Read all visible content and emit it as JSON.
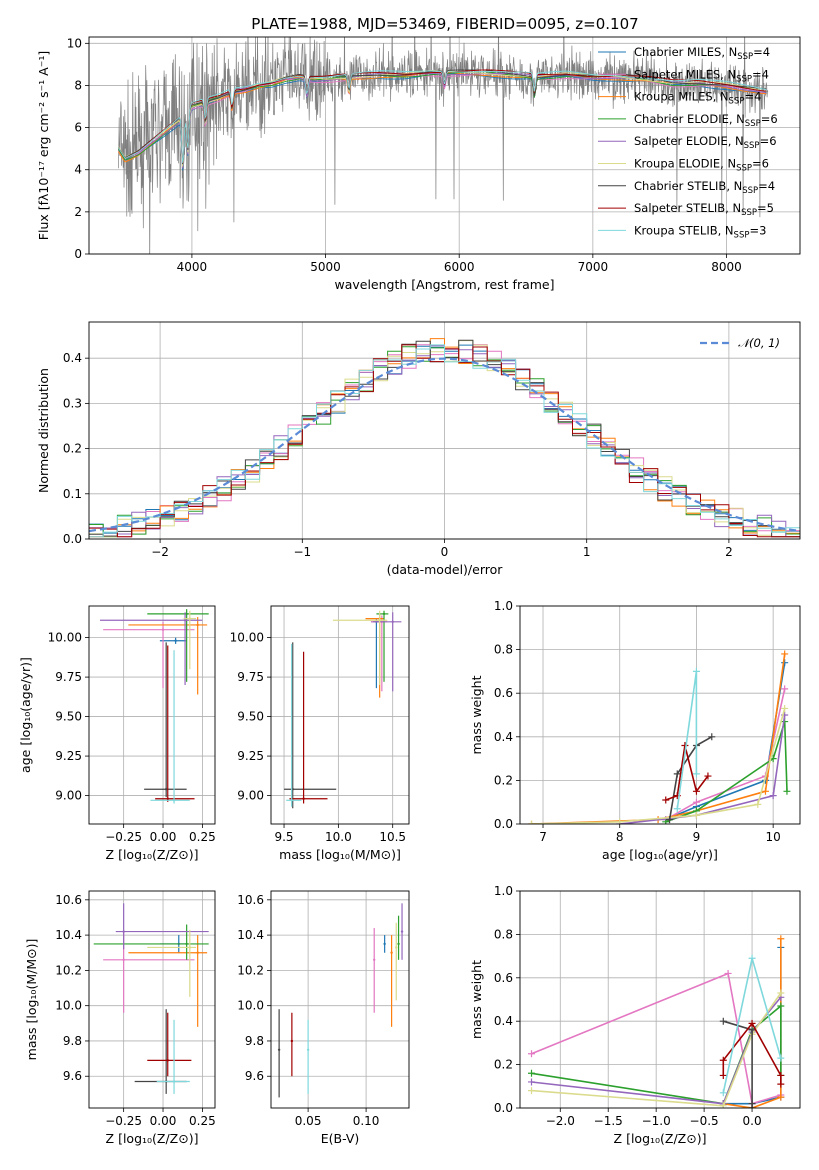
{
  "figure": {
    "title": "PLATE=1988, MJD=53469, FIBERID=0095, z=0.107"
  },
  "colors": {
    "Chabrier MILES": "#1f77b4",
    "Salpeter MILES": "#e377c2",
    "Kroupa MILES": "#ff7f0e",
    "Chabrier ELODIE": "#2ca02c",
    "Salpeter ELODIE": "#9467bd",
    "Kroupa ELODIE": "#dbdb8d",
    "Chabrier STELIB": "#444444",
    "Salpeter STELIB": "#a00000",
    "Kroupa STELIB": "#7fd8dc",
    "gaussian": "#5b8bd6"
  },
  "chart_data": [
    {
      "id": "spectrum",
      "type": "line",
      "title": "PLATE=1988, MJD=53469, FIBERID=0095, z=0.107",
      "xlabel": "wavelength [Angstrom, rest frame]",
      "ylabel": "Flux [fλ10⁻¹⁷ erg cm⁻² s⁻¹ A⁻¹]",
      "xlim": [
        3230,
        8550
      ],
      "ylim": [
        0,
        10.3
      ],
      "xticks": [
        4000,
        5000,
        6000,
        7000,
        8000
      ],
      "yticks": [
        0,
        2,
        4,
        6,
        8,
        10
      ],
      "legend_position": "upper-right",
      "continuum": {
        "x": [
          3450,
          3500,
          3600,
          3700,
          3800,
          3900,
          4000,
          4100,
          4200,
          4300,
          4400,
          4500,
          4600,
          4700,
          4800,
          4900,
          5000,
          5200,
          5400,
          5600,
          5800,
          6000,
          6200,
          6400,
          6600,
          6800,
          7000,
          7200,
          7400,
          7600,
          7800,
          8000,
          8200,
          8300
        ],
        "y": [
          5.0,
          4.5,
          4.8,
          5.3,
          5.8,
          6.3,
          7.0,
          7.2,
          7.4,
          7.7,
          7.8,
          8.0,
          8.1,
          8.3,
          8.4,
          8.3,
          8.3,
          8.4,
          8.5,
          8.5,
          8.6,
          8.6,
          8.6,
          8.5,
          8.4,
          8.5,
          8.4,
          8.4,
          8.3,
          8.1,
          8.1,
          8.0,
          7.8,
          7.7
        ]
      },
      "series": [
        {
          "name": "Chabrier MILES, N_SSP=4"
        },
        {
          "name": "Salpeter MILES, N_SSP=4"
        },
        {
          "name": "Kroupa MILES, N_SSP=4"
        },
        {
          "name": "Chabrier ELODIE, N_SSP=6"
        },
        {
          "name": "Salpeter ELODIE, N_SSP=6"
        },
        {
          "name": "Kroupa ELODIE, N_SSP=6"
        },
        {
          "name": "Chabrier STELIB, N_SSP=4"
        },
        {
          "name": "Salpeter STELIB, N_SSP=5"
        },
        {
          "name": "Kroupa STELIB, N_SSP=3"
        }
      ]
    },
    {
      "id": "residuals",
      "type": "line",
      "xlabel": "(data-model)/error",
      "ylabel": "Normed distribution",
      "xlim": [
        -2.5,
        2.5
      ],
      "ylim": [
        0,
        0.48
      ],
      "xticks": [
        -2,
        -1,
        0,
        1,
        2
      ],
      "yticks": [
        0.0,
        0.1,
        0.2,
        0.3,
        0.4
      ],
      "legend_position": "upper-right",
      "gaussian_label": "𝒩(0, 1)"
    },
    {
      "id": "age-vs-Z",
      "type": "scatter",
      "xlabel": "Z [log₁₀(Z/Z⊙)]",
      "ylabel": "age  [log₁₀(age/yr)]",
      "xlim": [
        -0.47,
        0.33
      ],
      "ylim": [
        8.82,
        10.2
      ],
      "xticks": [
        -0.25,
        0.0,
        0.25
      ],
      "yticks": [
        9.0,
        9.25,
        9.5,
        9.75,
        10.0
      ],
      "points": [
        {
          "s": "Chabrier MILES",
          "x": 0.08,
          "y": 9.98,
          "xe": [
            -0.02,
            0.15
          ],
          "ye": [
            9.96,
            10.0
          ]
        },
        {
          "s": "Salpeter MILES",
          "x": 0.0,
          "y": 10.05,
          "xe": [
            -0.38,
            0.2
          ],
          "ye": [
            9.68,
            10.1
          ]
        },
        {
          "s": "Kroupa MILES",
          "x": 0.22,
          "y": 10.08,
          "xe": [
            -0.22,
            0.28
          ],
          "ye": [
            9.64,
            10.13
          ]
        },
        {
          "s": "Chabrier ELODIE",
          "x": 0.15,
          "y": 10.15,
          "xe": [
            -0.1,
            0.29
          ],
          "ye": [
            9.72,
            10.18
          ]
        },
        {
          "s": "Salpeter ELODIE",
          "x": 0.14,
          "y": 10.11,
          "xe": [
            -0.4,
            0.25
          ],
          "ye": [
            9.7,
            10.16
          ]
        },
        {
          "s": "Kroupa ELODIE",
          "x": 0.17,
          "y": 10.12,
          "xe": [
            0.13,
            0.21
          ],
          "ye": [
            9.8,
            10.17
          ]
        },
        {
          "s": "Chabrier STELIB",
          "x": 0.02,
          "y": 9.04,
          "xe": [
            -0.12,
            0.15
          ],
          "ye": [
            8.99,
            9.97
          ]
        },
        {
          "s": "Salpeter STELIB",
          "x": 0.03,
          "y": 8.98,
          "xe": [
            -0.05,
            0.2
          ],
          "ye": [
            8.96,
            9.95
          ]
        },
        {
          "s": "Kroupa STELIB",
          "x": 0.07,
          "y": 8.97,
          "xe": [
            -0.08,
            0.17
          ],
          "ye": [
            8.95,
            9.92
          ]
        }
      ]
    },
    {
      "id": "age-vs-mass",
      "type": "scatter",
      "xlabel": "mass [log₁₀(M/M⊙)]",
      "ylabel": "",
      "xlim": [
        9.38,
        10.65
      ],
      "ylim": [
        8.82,
        10.2
      ],
      "xticks": [
        9.5,
        10.0,
        10.5
      ],
      "yticks": [
        9.0,
        9.25,
        9.5,
        9.75,
        10.0
      ],
      "points": [
        {
          "s": "Chabrier MILES",
          "x": 10.35,
          "y": 10.1,
          "xe": [
            10.3,
            10.4
          ],
          "ye": [
            9.68,
            10.12
          ]
        },
        {
          "s": "Salpeter MILES",
          "x": 10.4,
          "y": 10.1,
          "xe": [
            10.3,
            10.45
          ],
          "ye": [
            9.66,
            10.14
          ]
        },
        {
          "s": "Kroupa MILES",
          "x": 10.38,
          "y": 10.12,
          "xe": [
            10.25,
            10.42
          ],
          "ye": [
            9.62,
            10.15
          ]
        },
        {
          "s": "Chabrier ELODIE",
          "x": 10.42,
          "y": 10.15,
          "xe": [
            10.35,
            10.46
          ],
          "ye": [
            9.72,
            10.17
          ]
        },
        {
          "s": "Salpeter ELODIE",
          "x": 10.5,
          "y": 10.1,
          "xe": [
            10.32,
            10.58
          ],
          "ye": [
            9.66,
            10.16
          ]
        },
        {
          "s": "Kroupa ELODIE",
          "x": 10.38,
          "y": 10.11,
          "xe": [
            9.95,
            10.45
          ],
          "ye": [
            9.7,
            10.17
          ]
        },
        {
          "s": "Chabrier STELIB",
          "x": 9.58,
          "y": 9.04,
          "xe": [
            9.5,
            9.98
          ],
          "ye": [
            8.92,
            9.97
          ]
        },
        {
          "s": "Salpeter STELIB",
          "x": 9.68,
          "y": 8.98,
          "xe": [
            9.55,
            9.9
          ],
          "ye": [
            8.95,
            9.91
          ]
        },
        {
          "s": "Kroupa STELIB",
          "x": 9.57,
          "y": 8.97,
          "xe": [
            9.52,
            9.66
          ],
          "ye": [
            8.93,
            9.96
          ]
        }
      ]
    },
    {
      "id": "mass-weight-vs-age",
      "type": "line",
      "xlabel": "age  [log₁₀(age/yr)]",
      "ylabel": "mass weight",
      "xlim": [
        6.7,
        10.35
      ],
      "ylim": [
        0,
        1.0
      ],
      "xticks": [
        7,
        8,
        9,
        10
      ],
      "yticks": [
        0.0,
        0.2,
        0.4,
        0.6,
        0.8,
        1.0
      ],
      "series": [
        {
          "name": "Chabrier MILES",
          "x": [
            8.6,
            9.0,
            9.9,
            10.15
          ],
          "y": [
            0.02,
            0.08,
            0.2,
            0.74
          ]
        },
        {
          "name": "Salpeter MILES",
          "x": [
            8.6,
            9.0,
            9.9,
            10.15
          ],
          "y": [
            0.02,
            0.1,
            0.22,
            0.62
          ]
        },
        {
          "name": "Kroupa MILES",
          "x": [
            6.85,
            8.5,
            9.0,
            9.9,
            10.15
          ],
          "y": [
            0.0,
            0.02,
            0.06,
            0.15,
            0.78
          ]
        },
        {
          "name": "Chabrier ELODIE",
          "x": [
            8.6,
            9.0,
            10.0,
            10.15,
            10.18
          ],
          "y": [
            0.01,
            0.06,
            0.3,
            0.47,
            0.15
          ]
        },
        {
          "name": "Salpeter ELODIE",
          "x": [
            8.0,
            9.0,
            10.0,
            10.15
          ],
          "y": [
            0.0,
            0.04,
            0.13,
            0.5
          ]
        },
        {
          "name": "Kroupa ELODIE",
          "x": [
            6.85,
            8.0,
            9.0,
            9.8,
            10.15
          ],
          "y": [
            0.0,
            0.01,
            0.04,
            0.09,
            0.53
          ]
        },
        {
          "name": "Chabrier STELIB",
          "x": [
            8.65,
            8.75,
            9.0,
            9.2
          ],
          "y": [
            0.02,
            0.23,
            0.36,
            0.4
          ]
        },
        {
          "name": "Salpeter STELIB",
          "x": [
            8.6,
            8.75,
            8.85,
            9.0,
            9.15
          ],
          "y": [
            0.11,
            0.13,
            0.36,
            0.15,
            0.22
          ]
        },
        {
          "name": "Kroupa STELIB",
          "x": [
            8.75,
            9.0,
            9.0
          ],
          "y": [
            0.07,
            0.7,
            0.23
          ]
        }
      ]
    },
    {
      "id": "mass-vs-Z",
      "type": "scatter",
      "xlabel": "Z [log₁₀(Z/Z⊙)]",
      "ylabel": "mass [log₁₀(M/M⊙)]",
      "xlim": [
        -0.47,
        0.33
      ],
      "ylim": [
        9.42,
        10.65
      ],
      "xticks": [
        -0.25,
        0.0,
        0.25
      ],
      "yticks": [
        9.6,
        9.8,
        10.0,
        10.2,
        10.4,
        10.6
      ],
      "points": [
        {
          "s": "Chabrier MILES",
          "x": 0.1,
          "y": 10.35,
          "xe": [
            -0.02,
            0.15
          ],
          "ye": [
            10.3,
            10.4
          ]
        },
        {
          "s": "Salpeter MILES",
          "x": -0.25,
          "y": 10.26,
          "xe": [
            -0.38,
            0.2
          ],
          "ye": [
            9.96,
            10.42
          ]
        },
        {
          "s": "Kroupa MILES",
          "x": 0.22,
          "y": 10.3,
          "xe": [
            -0.22,
            0.28
          ],
          "ye": [
            9.88,
            10.4
          ]
        },
        {
          "s": "Chabrier ELODIE",
          "x": 0.15,
          "y": 10.35,
          "xe": [
            -0.44,
            0.29
          ],
          "ye": [
            10.26,
            10.46
          ]
        },
        {
          "s": "Salpeter ELODIE",
          "x": -0.25,
          "y": 10.42,
          "xe": [
            -0.3,
            0.29
          ],
          "ye": [
            10.32,
            10.58
          ]
        },
        {
          "s": "Kroupa ELODIE",
          "x": 0.17,
          "y": 10.33,
          "xe": [
            -0.1,
            0.21
          ],
          "ye": [
            10.05,
            10.43
          ]
        },
        {
          "s": "Chabrier STELIB",
          "x": 0.02,
          "y": 9.57,
          "xe": [
            -0.18,
            0.15
          ],
          "ye": [
            9.5,
            9.98
          ]
        },
        {
          "s": "Salpeter STELIB",
          "x": 0.03,
          "y": 9.69,
          "xe": [
            -0.1,
            0.18
          ],
          "ye": [
            9.6,
            9.96
          ]
        },
        {
          "s": "Kroupa STELIB",
          "x": 0.07,
          "y": 9.57,
          "xe": [
            -0.04,
            0.17
          ],
          "ye": [
            9.5,
            9.92
          ]
        }
      ]
    },
    {
      "id": "mass-vs-EBV",
      "type": "scatter",
      "xlabel": "E(B-V)",
      "ylabel": "",
      "xlim": [
        0.018,
        0.137
      ],
      "ylim": [
        9.42,
        10.65
      ],
      "xticks": [
        0.05,
        0.1
      ],
      "yticks": [
        9.6,
        9.8,
        10.0,
        10.2,
        10.4,
        10.6
      ],
      "points": [
        {
          "s": "Chabrier MILES",
          "x": 0.116,
          "y": 10.35,
          "ye": [
            10.3,
            10.4
          ]
        },
        {
          "s": "Salpeter MILES",
          "x": 0.107,
          "y": 10.26,
          "ye": [
            9.96,
            10.44
          ]
        },
        {
          "s": "Kroupa MILES",
          "x": 0.122,
          "y": 10.3,
          "ye": [
            9.88,
            10.4
          ]
        },
        {
          "s": "Chabrier ELODIE",
          "x": 0.128,
          "y": 10.35,
          "ye": [
            10.26,
            10.51
          ]
        },
        {
          "s": "Salpeter ELODIE",
          "x": 0.131,
          "y": 10.42,
          "ye": [
            10.26,
            10.58
          ]
        },
        {
          "s": "Kroupa ELODIE",
          "x": 0.126,
          "y": 10.33,
          "ye": [
            10.03,
            10.47
          ]
        },
        {
          "s": "Chabrier STELIB",
          "x": 0.025,
          "y": 9.75,
          "ye": [
            9.48,
            9.98
          ]
        },
        {
          "s": "Salpeter STELIB",
          "x": 0.036,
          "y": 9.8,
          "ye": [
            9.6,
            9.96
          ]
        },
        {
          "s": "Kroupa STELIB",
          "x": 0.05,
          "y": 9.75,
          "ye": [
            9.5,
            9.92
          ]
        }
      ]
    },
    {
      "id": "mass-weight-vs-Z",
      "type": "line",
      "xlabel": "Z [log₁₀(Z/Z⊙)]",
      "ylabel": "mass weight",
      "xlim": [
        -2.42,
        0.5
      ],
      "ylim": [
        0,
        1.0
      ],
      "xticks": [
        -2.0,
        -1.5,
        -1.0,
        -0.5,
        0.0
      ],
      "yticks": [
        0.0,
        0.2,
        0.4,
        0.6,
        0.8,
        1.0
      ],
      "series": [
        {
          "name": "Chabrier MILES",
          "x": [
            -0.3,
            0.0,
            0.3,
            0.3
          ],
          "y": [
            0.02,
            0.02,
            0.05,
            0.74
          ]
        },
        {
          "name": "Salpeter MILES",
          "x": [
            -2.3,
            -0.25,
            0.0,
            0.3
          ],
          "y": [
            0.25,
            0.62,
            0.02,
            0.06
          ]
        },
        {
          "name": "Kroupa MILES",
          "x": [
            -0.3,
            0.0,
            0.3,
            0.3
          ],
          "y": [
            0.02,
            0.0,
            0.05,
            0.78
          ]
        },
        {
          "name": "Chabrier ELODIE",
          "x": [
            -2.3,
            -0.3,
            0.0,
            0.3,
            0.3
          ],
          "y": [
            0.16,
            0.02,
            0.36,
            0.47,
            0.15
          ]
        },
        {
          "name": "Salpeter ELODIE",
          "x": [
            -2.3,
            -0.3,
            0.0,
            0.3
          ],
          "y": [
            0.12,
            0.02,
            0.35,
            0.51
          ]
        },
        {
          "name": "Kroupa ELODIE",
          "x": [
            -2.3,
            -0.3,
            0.0,
            0.3
          ],
          "y": [
            0.08,
            0.01,
            0.34,
            0.53
          ]
        },
        {
          "name": "Chabrier STELIB",
          "x": [
            -0.3,
            0.0,
            0.0,
            0.0
          ],
          "y": [
            0.4,
            0.36,
            0.02,
            0.0
          ]
        },
        {
          "name": "Salpeter STELIB",
          "x": [
            -0.3,
            -0.3,
            0.0,
            0.3,
            0.3
          ],
          "y": [
            0.15,
            0.22,
            0.39,
            0.15,
            0.11
          ]
        },
        {
          "name": "Kroupa STELIB",
          "x": [
            -0.3,
            0.0,
            0.3
          ],
          "y": [
            0.07,
            0.69,
            0.23
          ]
        }
      ]
    }
  ]
}
